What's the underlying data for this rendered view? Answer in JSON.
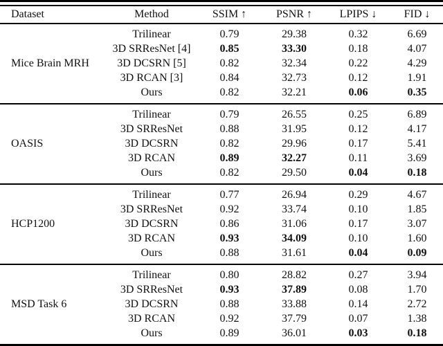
{
  "table": {
    "colors": {
      "text": "#111111",
      "rule": "#000000",
      "background": "#ffffff"
    },
    "columns": [
      {
        "key": "dataset",
        "label": "Dataset"
      },
      {
        "key": "method",
        "label": "Method"
      },
      {
        "key": "ssim",
        "label": "SSIM ↑"
      },
      {
        "key": "psnr",
        "label": "PSNR ↑"
      },
      {
        "key": "lpips",
        "label": "LPIPS ↓"
      },
      {
        "key": "fid",
        "label": "FID ↓"
      }
    ],
    "groups": [
      {
        "dataset": "Mice Brain MRH",
        "rows": [
          {
            "method": "Trilinear",
            "ssim": "0.79",
            "psnr": "29.38",
            "lpips": "0.32",
            "fid": "6.69",
            "bold": []
          },
          {
            "method": "3D SRResNet [4]",
            "ssim": "0.85",
            "psnr": "33.30",
            "lpips": "0.18",
            "fid": "4.07",
            "bold": [
              "ssim",
              "psnr"
            ]
          },
          {
            "method": "3D DCSRN [5]",
            "ssim": "0.82",
            "psnr": "32.34",
            "lpips": "0.22",
            "fid": "4.29",
            "bold": []
          },
          {
            "method": "3D RCAN [3]",
            "ssim": "0.84",
            "psnr": "32.73",
            "lpips": "0.12",
            "fid": "1.91",
            "bold": []
          },
          {
            "method": "Ours",
            "ssim": "0.82",
            "psnr": "32.21",
            "lpips": "0.06",
            "fid": "0.35",
            "bold": [
              "lpips",
              "fid"
            ]
          }
        ]
      },
      {
        "dataset": "OASIS",
        "rows": [
          {
            "method": "Trilinear",
            "ssim": "0.79",
            "psnr": "26.55",
            "lpips": "0.25",
            "fid": "6.89",
            "bold": []
          },
          {
            "method": "3D SRResNet",
            "ssim": "0.88",
            "psnr": "31.95",
            "lpips": "0.12",
            "fid": "4.17",
            "bold": []
          },
          {
            "method": "3D DCSRN",
            "ssim": "0.82",
            "psnr": "29.96",
            "lpips": "0.17",
            "fid": "5.41",
            "bold": []
          },
          {
            "method": "3D RCAN",
            "ssim": "0.89",
            "psnr": "32.27",
            "lpips": "0.11",
            "fid": "3.69",
            "bold": [
              "ssim",
              "psnr"
            ]
          },
          {
            "method": "Ours",
            "ssim": "0.82",
            "psnr": "29.50",
            "lpips": "0.04",
            "fid": "0.18",
            "bold": [
              "lpips",
              "fid"
            ]
          }
        ]
      },
      {
        "dataset": "HCP1200",
        "rows": [
          {
            "method": "Trilinear",
            "ssim": "0.77",
            "psnr": "26.94",
            "lpips": "0.29",
            "fid": "4.67",
            "bold": []
          },
          {
            "method": "3D SRResNet",
            "ssim": "0.92",
            "psnr": "33.74",
            "lpips": "0.10",
            "fid": "1.85",
            "bold": []
          },
          {
            "method": "3D DCSRN",
            "ssim": "0.86",
            "psnr": "31.06",
            "lpips": "0.17",
            "fid": "3.07",
            "bold": []
          },
          {
            "method": "3D RCAN",
            "ssim": "0.93",
            "psnr": "34.09",
            "lpips": "0.10",
            "fid": "1.60",
            "bold": [
              "ssim",
              "psnr"
            ]
          },
          {
            "method": "Ours",
            "ssim": "0.88",
            "psnr": "31.61",
            "lpips": "0.04",
            "fid": "0.09",
            "bold": [
              "lpips",
              "fid"
            ]
          }
        ]
      },
      {
        "dataset": "MSD Task 6",
        "rows": [
          {
            "method": "Trilinear",
            "ssim": "0.80",
            "psnr": "28.82",
            "lpips": "0.27",
            "fid": "3.94",
            "bold": []
          },
          {
            "method": "3D SRResNet",
            "ssim": "0.93",
            "psnr": "37.89",
            "lpips": "0.08",
            "fid": "1.70",
            "bold": [
              "ssim",
              "psnr"
            ]
          },
          {
            "method": "3D DCSRN",
            "ssim": "0.88",
            "psnr": "33.88",
            "lpips": "0.14",
            "fid": "2.72",
            "bold": []
          },
          {
            "method": "3D RCAN",
            "ssim": "0.92",
            "psnr": "37.79",
            "lpips": "0.07",
            "fid": "1.38",
            "bold": []
          },
          {
            "method": "Ours",
            "ssim": "0.89",
            "psnr": "36.01",
            "lpips": "0.03",
            "fid": "0.18",
            "bold": [
              "lpips",
              "fid"
            ]
          }
        ]
      }
    ]
  }
}
